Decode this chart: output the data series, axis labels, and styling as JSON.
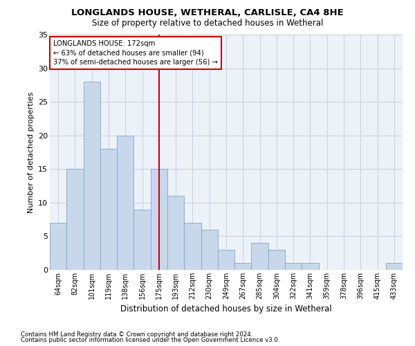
{
  "title1": "LONGLANDS HOUSE, WETHERAL, CARLISLE, CA4 8HE",
  "title2": "Size of property relative to detached houses in Wetheral",
  "xlabel": "Distribution of detached houses by size in Wetheral",
  "ylabel": "Number of detached properties",
  "categories": [
    "64sqm",
    "82sqm",
    "101sqm",
    "119sqm",
    "138sqm",
    "156sqm",
    "175sqm",
    "193sqm",
    "212sqm",
    "230sqm",
    "249sqm",
    "267sqm",
    "285sqm",
    "304sqm",
    "322sqm",
    "341sqm",
    "359sqm",
    "378sqm",
    "396sqm",
    "415sqm",
    "433sqm"
  ],
  "values": [
    7,
    15,
    28,
    18,
    20,
    9,
    15,
    11,
    7,
    6,
    3,
    1,
    4,
    3,
    1,
    1,
    0,
    0,
    0,
    0,
    1
  ],
  "bar_color": "#c8d8ea",
  "bar_edge_color": "#7aa8cc",
  "highlight_color": "#cc0000",
  "annotation_text": "LONGLANDS HOUSE: 172sqm\n← 63% of detached houses are smaller (94)\n37% of semi-detached houses are larger (56) →",
  "annotation_box_color": "#ffffff",
  "annotation_box_edge_color": "#cc0000",
  "grid_color": "#c5cfe0",
  "bg_color": "#edf1f8",
  "footer1": "Contains HM Land Registry data © Crown copyright and database right 2024.",
  "footer2": "Contains public sector information licensed under the Open Government Licence v3.0.",
  "ylim": [
    0,
    35
  ],
  "yticks": [
    0,
    5,
    10,
    15,
    20,
    25,
    30,
    35
  ]
}
